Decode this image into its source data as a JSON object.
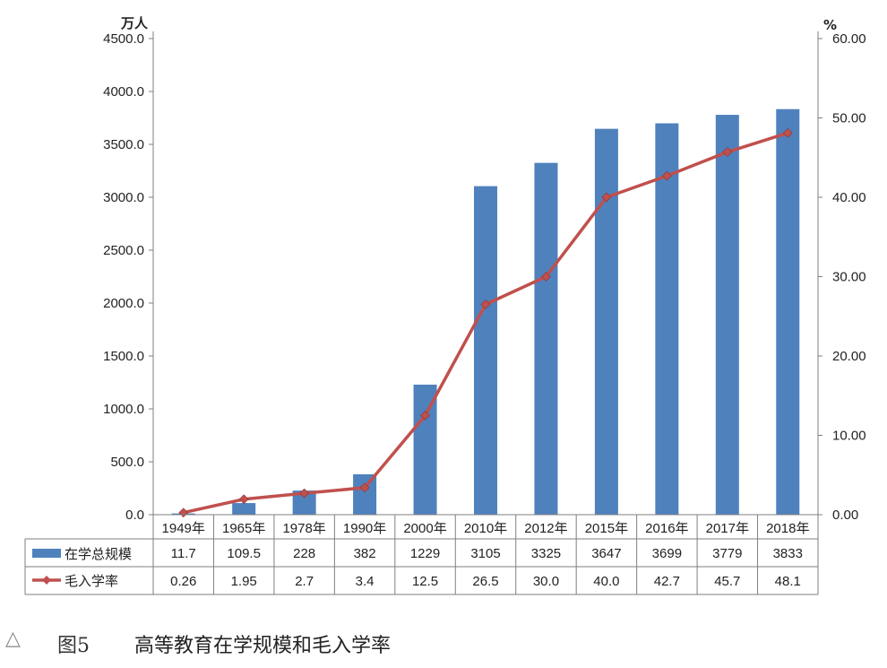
{
  "chart_data": {
    "type": "bar",
    "categories": [
      "1949年",
      "1965年",
      "1978年",
      "1990年",
      "2000年",
      "2010年",
      "2012年",
      "2015年",
      "2016年",
      "2017年",
      "2018年"
    ],
    "series": [
      {
        "name": "在学总规模",
        "type": "bar",
        "axis": "left",
        "color": "#4F81BD",
        "values": [
          11.7,
          109.5,
          228,
          382,
          1229,
          3105,
          3325,
          3647,
          3699,
          3779,
          3833
        ],
        "labels": [
          "11.7",
          "109.5",
          "228",
          "382",
          "1229",
          "3105",
          "3325",
          "3647",
          "3699",
          "3779",
          "3833"
        ]
      },
      {
        "name": "毛入学率",
        "type": "line",
        "axis": "right",
        "color": "#C0504D",
        "values": [
          0.26,
          1.95,
          2.7,
          3.4,
          12.5,
          26.5,
          30.0,
          40.0,
          42.7,
          45.7,
          48.1
        ],
        "labels": [
          "0.26",
          "1.95",
          "2.7",
          "3.4",
          "12.5",
          "26.5",
          "30.0",
          "40.0",
          "42.7",
          "45.7",
          "48.1"
        ]
      }
    ],
    "y_left": {
      "unit": "万人",
      "min": 0,
      "max": 4500,
      "step": 500,
      "ticks": [
        "0.0",
        "500.0",
        "1000.0",
        "1500.0",
        "2000.0",
        "2500.0",
        "3000.0",
        "3500.0",
        "4000.0",
        "4500.0"
      ]
    },
    "y_right": {
      "unit": "%",
      "min": 0,
      "max": 60,
      "step": 10,
      "ticks": [
        "0.00",
        "10.00",
        "20.00",
        "30.00",
        "40.00",
        "50.00",
        "60.00"
      ]
    },
    "grid": false,
    "legend": "data-table"
  },
  "caption": {
    "icon": "△",
    "figure_label": "图5",
    "title": "高等教育在学规模和毛入学率"
  }
}
